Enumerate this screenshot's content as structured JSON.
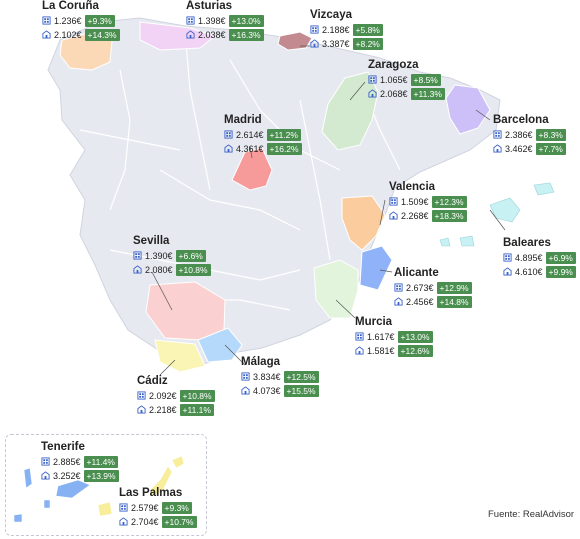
{
  "source": "Fuente: RealAdvisor",
  "icons": {
    "flat": "apartment-icon",
    "house": "house-icon"
  },
  "colors": {
    "land": "#e7e9f1",
    "border": "#ffffff",
    "badge": "#4a8f4f",
    "la_coruna": "#fbd9b7",
    "asturias": "#f2d3f6",
    "vizcaya": "#c38a8f",
    "zaragoza": "#d3ead0",
    "barcelona": "#cdbff7",
    "madrid": "#f79a9a",
    "valencia": "#fbcc9e",
    "baleares": "#c8f1f4",
    "alicante": "#8fb2f8",
    "murcia": "#e3f4dc",
    "sevilla": "#fbd0d0",
    "cadiz": "#faf5b5",
    "malaga": "#b5d9fb",
    "tenerife": "#86b1f3",
    "las_palmas": "#f7ed9a"
  },
  "regions": [
    {
      "key": "la_coruna",
      "name": "La Coruña",
      "price1": "1.236€",
      "pct1": "+9.3%",
      "price2": "2.102€",
      "pct2": "+14.3%"
    },
    {
      "key": "asturias",
      "name": "Asturias",
      "price1": "1.398€",
      "pct1": "+13.0%",
      "price2": "2.038€",
      "pct2": "+16.3%"
    },
    {
      "key": "vizcaya",
      "name": "Vizcaya",
      "price1": "2.188€",
      "pct1": "+5.8%",
      "price2": "3.387€",
      "pct2": "+8.2%"
    },
    {
      "key": "zaragoza",
      "name": "Zaragoza",
      "price1": "1.065€",
      "pct1": "+8.5%",
      "price2": "2.068€",
      "pct2": "+11.3%"
    },
    {
      "key": "barcelona",
      "name": "Barcelona",
      "price1": "2.386€",
      "pct1": "+8.3%",
      "price2": "3.462€",
      "pct2": "+7.7%"
    },
    {
      "key": "madrid",
      "name": "Madrid",
      "price1": "2.614€",
      "pct1": "+11.2%",
      "price2": "4.361€",
      "pct2": "+16.2%"
    },
    {
      "key": "valencia",
      "name": "Valencia",
      "price1": "1.509€",
      "pct1": "+12.3%",
      "price2": "2.268€",
      "pct2": "+18.3%"
    },
    {
      "key": "baleares",
      "name": "Baleares",
      "price1": "4.895€",
      "pct1": "+6.9%",
      "price2": "4.610€",
      "pct2": "+9.9%"
    },
    {
      "key": "sevilla",
      "name": "Sevilla",
      "price1": "1.390€",
      "pct1": "+6.6%",
      "price2": "2.080€",
      "pct2": "+10.8%"
    },
    {
      "key": "alicante",
      "name": "Alicante",
      "price1": "2.673€",
      "pct1": "+12.9%",
      "price2": "2.456€",
      "pct2": "+14.8%"
    },
    {
      "key": "murcia",
      "name": "Murcia",
      "price1": "1.617€",
      "pct1": "+13.0%",
      "price2": "1.581€",
      "pct2": "+12.6%"
    },
    {
      "key": "malaga",
      "name": "Málaga",
      "price1": "3.834€",
      "pct1": "+12.5%",
      "price2": "4.073€",
      "pct2": "+15.5%"
    },
    {
      "key": "cadiz",
      "name": "Cádiz",
      "price1": "2.092€",
      "pct1": "+10.8%",
      "price2": "2.218€",
      "pct2": "+11.1%"
    },
    {
      "key": "tenerife",
      "name": "Tenerife",
      "price1": "2.885€",
      "pct1": "+11.4%",
      "price2": "3.252€",
      "pct2": "+13.9%"
    },
    {
      "key": "las_palmas",
      "name": "Las Palmas",
      "price1": "2.579€",
      "pct1": "+9.3%",
      "price2": "2.704€",
      "pct2": "+10.7%"
    }
  ]
}
